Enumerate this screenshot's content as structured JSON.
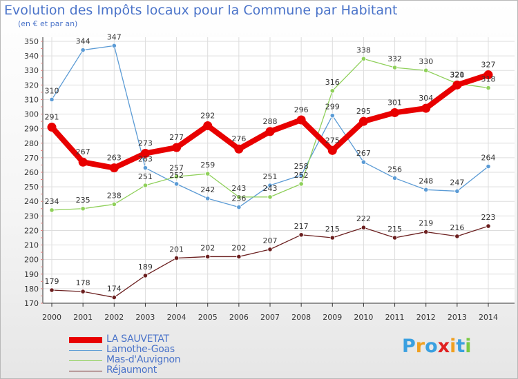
{
  "header": {
    "title": "Evolution des Impôts locaux pour la Commune par Habitant",
    "subtitle": "(en € et par an)"
  },
  "brand": {
    "name": "Proxiti",
    "letters": [
      {
        "ch": "P",
        "color": "#3aa0e0"
      },
      {
        "ch": "r",
        "color": "#f0a020"
      },
      {
        "ch": "o",
        "color": "#3aa0e0"
      },
      {
        "ch": "x",
        "color": "#e02020"
      },
      {
        "ch": "i",
        "color": "#f0a020"
      },
      {
        "ch": "t",
        "color": "#3aa0e0"
      },
      {
        "ch": "i",
        "color": "#7ac943"
      }
    ]
  },
  "chart_data": {
    "type": "line",
    "title": "Evolution des Impôts locaux pour la Commune par Habitant",
    "subtitle": "(en € et par an)",
    "x": [
      "2000",
      "2001",
      "2002",
      "2003",
      "2004",
      "2005",
      "2006",
      "2007",
      "2008",
      "2009",
      "2010",
      "2011",
      "2012",
      "2013",
      "2014"
    ],
    "ylim": [
      170,
      350
    ],
    "yticks": [
      170,
      180,
      190,
      200,
      210,
      220,
      230,
      240,
      250,
      260,
      270,
      280,
      290,
      300,
      310,
      320,
      330,
      340,
      350
    ],
    "grid": true,
    "legend_position": "bottom-left",
    "series": [
      {
        "name": "LA SAUVETAT",
        "color": "#e80000",
        "emphasis": true,
        "values": [
          291,
          267,
          263,
          273,
          277,
          292,
          276,
          288,
          296,
          275,
          295,
          301,
          304,
          320,
          327
        ]
      },
      {
        "name": "Lamothe-Goas",
        "color": "#5b9bd5",
        "emphasis": false,
        "values": [
          310,
          344,
          347,
          263,
          252,
          242,
          236,
          251,
          258,
          299,
          267,
          256,
          248,
          247,
          264
        ]
      },
      {
        "name": "Mas-d'Auvignon",
        "color": "#8fd05a",
        "emphasis": false,
        "values": [
          234,
          235,
          238,
          251,
          257,
          259,
          243,
          243,
          252,
          316,
          338,
          332,
          330,
          321,
          318
        ]
      },
      {
        "name": "Réjaumont",
        "color": "#6b1f1f",
        "emphasis": false,
        "values": [
          179,
          178,
          174,
          189,
          201,
          202,
          202,
          207,
          217,
          215,
          222,
          215,
          219,
          216,
          223
        ]
      }
    ]
  }
}
